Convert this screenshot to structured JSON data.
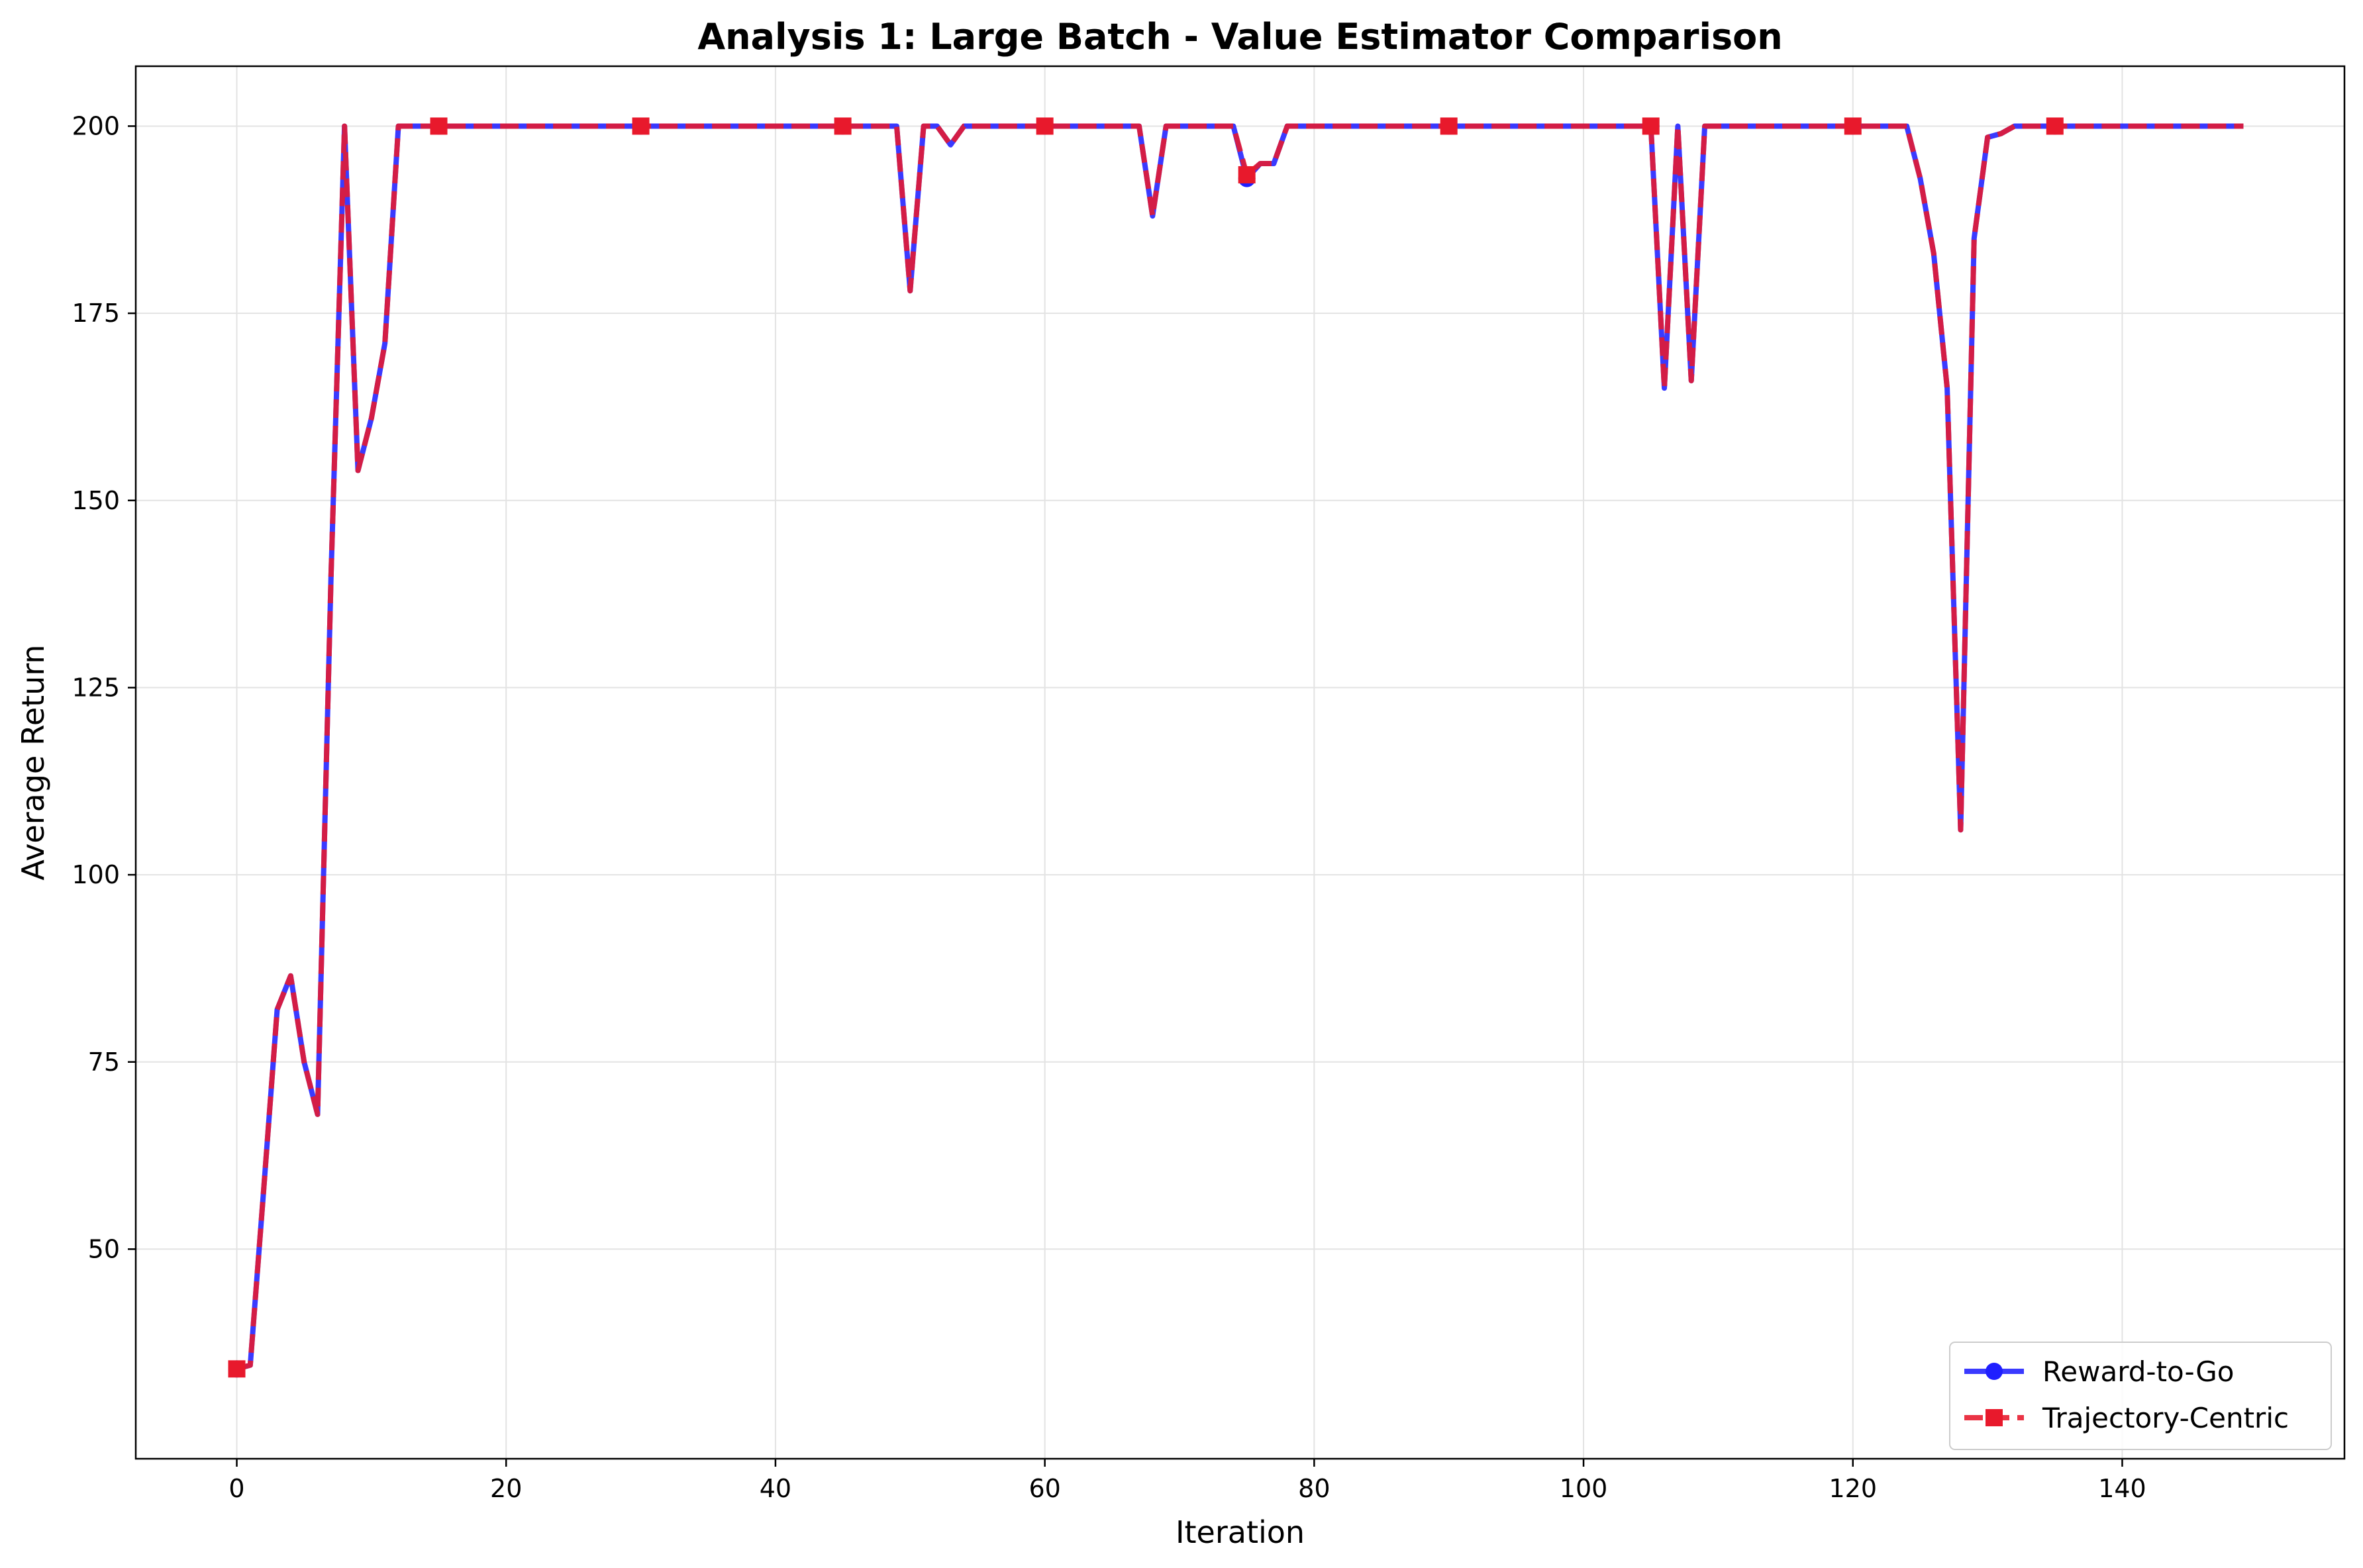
{
  "chart_data": {
    "type": "line",
    "title": "Analysis 1: Large Batch - Value Estimator Comparison",
    "xlabel": "Iteration",
    "ylabel": "Average Return",
    "xlim": [
      -7.5,
      156.5
    ],
    "ylim": [
      22,
      208
    ],
    "x_ticks": [
      0,
      20,
      40,
      60,
      80,
      100,
      120,
      140
    ],
    "y_ticks": [
      50,
      75,
      100,
      125,
      150,
      175,
      200
    ],
    "grid": true,
    "legend_position": "bottom-right",
    "x": [
      0,
      1,
      2,
      3,
      4,
      5,
      6,
      7,
      8,
      9,
      10,
      11,
      12,
      13,
      14,
      15,
      16,
      17,
      18,
      19,
      20,
      21,
      22,
      23,
      24,
      25,
      26,
      27,
      28,
      29,
      30,
      31,
      32,
      33,
      34,
      35,
      36,
      37,
      38,
      39,
      40,
      41,
      42,
      43,
      44,
      45,
      46,
      47,
      48,
      49,
      50,
      51,
      52,
      53,
      54,
      55,
      56,
      57,
      58,
      59,
      60,
      61,
      62,
      63,
      64,
      65,
      66,
      67,
      68,
      69,
      70,
      71,
      72,
      73,
      74,
      75,
      76,
      77,
      78,
      79,
      80,
      81,
      82,
      83,
      84,
      85,
      86,
      87,
      88,
      89,
      90,
      91,
      92,
      93,
      94,
      95,
      96,
      97,
      98,
      99,
      100,
      101,
      102,
      103,
      104,
      105,
      106,
      107,
      108,
      109,
      110,
      111,
      112,
      113,
      114,
      115,
      116,
      117,
      118,
      119,
      120,
      121,
      122,
      123,
      124,
      125,
      126,
      127,
      128,
      129,
      130,
      131,
      132,
      133,
      134,
      135,
      136,
      137,
      138,
      139,
      140,
      141,
      142,
      143,
      144,
      145,
      146,
      147,
      148,
      149
    ],
    "series": [
      {
        "name": "Reward-to-Go",
        "color": "#1f1fff",
        "line_style": "solid",
        "marker": "circle",
        "marker_every": 15,
        "values": [
          34,
          34.5,
          58,
          82,
          86.5,
          75,
          68,
          140,
          200,
          154,
          161,
          171,
          200,
          200,
          200,
          200,
          200,
          200,
          200,
          200,
          200,
          200,
          200,
          200,
          200,
          200,
          200,
          200,
          200,
          200,
          200,
          200,
          200,
          200,
          200,
          200,
          200,
          200,
          200,
          200,
          200,
          200,
          200,
          200,
          200,
          200,
          200,
          200,
          200,
          200,
          178,
          200,
          200,
          197.5,
          200,
          200,
          200,
          200,
          200,
          200,
          200,
          200,
          200,
          200,
          200,
          200,
          200,
          200,
          188,
          200,
          200,
          200,
          200,
          200,
          200,
          193,
          195,
          195,
          200,
          200,
          200,
          200,
          200,
          200,
          200,
          200,
          200,
          200,
          200,
          200,
          200,
          200,
          200,
          200,
          200,
          200,
          200,
          200,
          200,
          200,
          200,
          200,
          200,
          200,
          200,
          200,
          165,
          200,
          166,
          200,
          200,
          200,
          200,
          200,
          200,
          200,
          200,
          200,
          200,
          200,
          200,
          200,
          200,
          200,
          200,
          193,
          183,
          165,
          106,
          185,
          198.5,
          199,
          200,
          200,
          200,
          200,
          200,
          200,
          200,
          200,
          200,
          200,
          200,
          200,
          200,
          200,
          200,
          200,
          200,
          200
        ]
      },
      {
        "name": "Trajectory-Centric",
        "color": "#e8192c",
        "line_style": "dashed",
        "marker": "square",
        "marker_every": 15,
        "values": [
          34,
          34.5,
          58,
          82,
          86.5,
          75,
          68,
          140,
          200,
          154,
          161,
          171,
          200,
          200,
          200,
          200,
          200,
          200,
          200,
          200,
          200,
          200,
          200,
          200,
          200,
          200,
          200,
          200,
          200,
          200,
          200,
          200,
          200,
          200,
          200,
          200,
          200,
          200,
          200,
          200,
          200,
          200,
          200,
          200,
          200,
          200,
          200,
          200,
          200,
          200,
          178,
          200,
          200,
          197.5,
          200,
          200,
          200,
          200,
          200,
          200,
          200,
          200,
          200,
          200,
          200,
          200,
          200,
          200,
          188,
          200,
          200,
          200,
          200,
          200,
          200,
          193.5,
          195,
          195,
          200,
          200,
          200,
          200,
          200,
          200,
          200,
          200,
          200,
          200,
          200,
          200,
          200,
          200,
          200,
          200,
          200,
          200,
          200,
          200,
          200,
          200,
          200,
          200,
          200,
          200,
          200,
          200,
          165,
          200,
          166,
          200,
          200,
          200,
          200,
          200,
          200,
          200,
          200,
          200,
          200,
          200,
          200,
          200,
          200,
          200,
          200,
          193,
          183,
          165,
          106,
          185,
          198.5,
          199,
          200,
          200,
          200,
          200,
          200,
          200,
          200,
          200,
          200,
          200,
          200,
          200,
          200,
          200,
          200,
          200,
          200,
          200
        ]
      }
    ]
  }
}
